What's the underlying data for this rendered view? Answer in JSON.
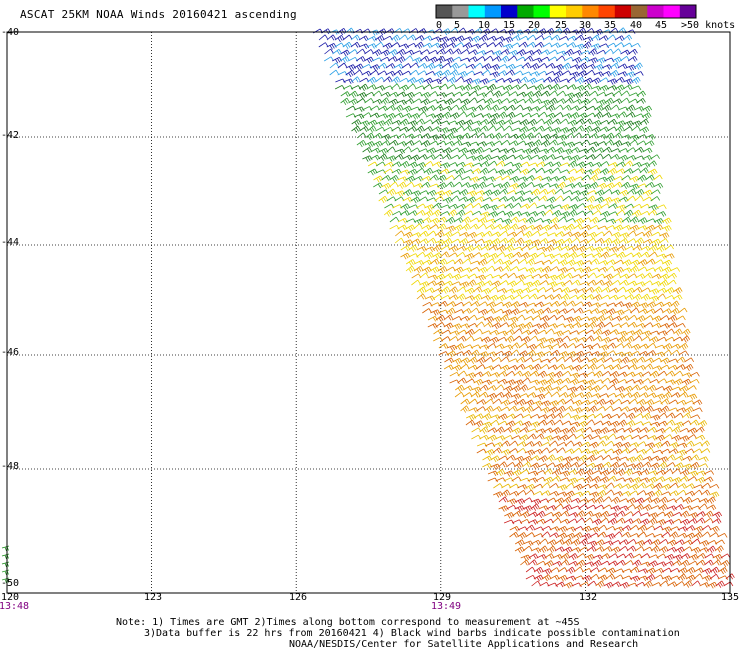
{
  "title": "ASCAT 25KM NOAA Winds 20160421 ascending",
  "legend": {
    "labels": [
      "0",
      "5",
      "10",
      "15",
      "20",
      "25",
      "30",
      "35",
      "40",
      "45",
      ">50 knots"
    ],
    "colors": [
      "#555555",
      "#999999",
      "#00ffff",
      "#0099ff",
      "#0000cc",
      "#00aa00",
      "#00ff00",
      "#ffff00",
      "#ffcc00",
      "#ff8800",
      "#ff4400",
      "#cc0000",
      "#996633",
      "#cc00cc",
      "#ff00ff",
      "#660099"
    ]
  },
  "axes": {
    "lat_labels": [
      "-40",
      "-42",
      "-44",
      "-46",
      "-48",
      "-50"
    ],
    "lon_labels": [
      "120",
      "123",
      "126",
      "129",
      "132",
      "135"
    ]
  },
  "pass_times": [
    "13:48",
    "13:49"
  ],
  "notes": {
    "line1": "Note: 1) Times are GMT 2)Times along bottom correspond to measurement at ~45S",
    "line2": "3)Data buffer is 22 hrs from 20160421 4) Black wind barbs indicate possible contamination",
    "line3": "NOAA/NESDIS/Center for Satellite Applications and Research"
  },
  "swath": {
    "speed_bands_knots": [
      {
        "lat_max": -40.0,
        "lat_min": -41.0,
        "color": "#1a1aa6",
        "alt_color": "#2aa0e6"
      },
      {
        "lat_max": -41.0,
        "lat_min": -42.5,
        "color": "#2f9e2f",
        "alt_color": "#1b7a1b"
      },
      {
        "lat_max": -42.5,
        "lat_min": -43.6,
        "color": "#2f9e2f",
        "alt_color": "#f0d800"
      },
      {
        "lat_max": -43.6,
        "lat_min": -45.0,
        "color": "#f0d800",
        "alt_color": "#e89a00"
      },
      {
        "lat_max": -45.0,
        "lat_min": -47.0,
        "color": "#e89a00",
        "alt_color": "#d86000"
      },
      {
        "lat_max": -47.0,
        "lat_min": -48.5,
        "color": "#d86000",
        "alt_color": "#e8b800"
      },
      {
        "lat_max": -48.5,
        "lat_min": -50.0,
        "color": "#d86000",
        "alt_color": "#cc2020"
      }
    ]
  }
}
